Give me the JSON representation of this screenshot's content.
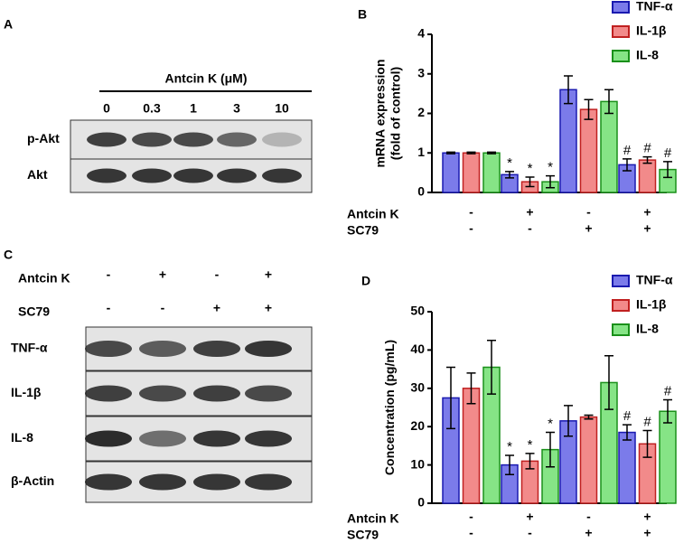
{
  "panels": {
    "a": {
      "label": "A",
      "title": "Antcin K (μM)",
      "doses": [
        "0",
        "0.3",
        "1",
        "3",
        "10"
      ],
      "rows": [
        "p-Akt",
        "Akt"
      ]
    },
    "b": {
      "label": "B"
    },
    "c": {
      "label": "C",
      "treatments": [
        {
          "name": "Antcin K",
          "signs": [
            "-",
            "+",
            "-",
            "+"
          ]
        },
        {
          "name": "SC79",
          "signs": [
            "-",
            "-",
            "+",
            "+"
          ]
        }
      ],
      "rows": [
        "TNF-α",
        "IL-1β",
        "IL-8",
        "β-Actin"
      ]
    },
    "d": {
      "label": "D"
    }
  },
  "chart_data": [
    {
      "type": "bar",
      "y_label": [
        "mRNA expression",
        "(fold of control)"
      ],
      "ylim": [
        0,
        4
      ],
      "yticks": [
        0,
        1,
        2,
        3,
        4
      ],
      "series": [
        {
          "name": "TNF-α",
          "color": "#7b7bea",
          "values": [
            1,
            0.45,
            2.6,
            0.7
          ],
          "errors": [
            0.02,
            0.08,
            0.35,
            0.15
          ],
          "markers": [
            null,
            "*",
            null,
            "#"
          ]
        },
        {
          "name": "IL-1β",
          "color": "#f28a8a",
          "values": [
            1,
            0.27,
            2.1,
            0.82
          ],
          "errors": [
            0.02,
            0.12,
            0.25,
            0.08
          ],
          "markers": [
            null,
            "*",
            null,
            "#"
          ]
        },
        {
          "name": "IL-8",
          "color": "#86e486",
          "values": [
            1,
            0.27,
            2.3,
            0.58
          ],
          "errors": [
            0.02,
            0.15,
            0.3,
            0.2
          ],
          "markers": [
            null,
            "*",
            null,
            "#"
          ]
        }
      ],
      "treatments": [
        {
          "name": "Antcin K",
          "signs": [
            "-",
            "+",
            "-",
            "+"
          ]
        },
        {
          "name": "SC79",
          "signs": [
            "-",
            "-",
            "+",
            "+"
          ]
        }
      ]
    },
    {
      "type": "bar",
      "y_label": [
        "Concentration (pg/mL)"
      ],
      "ylim": [
        0,
        50
      ],
      "yticks": [
        0,
        10,
        20,
        30,
        40,
        50
      ],
      "series": [
        {
          "name": "TNF-α",
          "color": "#7b7bea",
          "values": [
            27.5,
            10,
            21.5,
            18.5
          ],
          "errors": [
            8,
            2.5,
            4,
            2
          ],
          "markers": [
            null,
            "*",
            null,
            "#"
          ]
        },
        {
          "name": "IL-1β",
          "color": "#f28a8a",
          "values": [
            30,
            11,
            22.5,
            15.5
          ],
          "errors": [
            4,
            2,
            0.5,
            3.5
          ],
          "markers": [
            null,
            "*",
            null,
            "#"
          ]
        },
        {
          "name": "IL-8",
          "color": "#86e486",
          "values": [
            35.5,
            14,
            31.5,
            24
          ],
          "errors": [
            7,
            4.5,
            7,
            3
          ],
          "markers": [
            null,
            "*",
            null,
            "#"
          ]
        }
      ],
      "treatments": [
        {
          "name": "Antcin K",
          "signs": [
            "-",
            "+",
            "-",
            "+"
          ]
        },
        {
          "name": "SC79",
          "signs": [
            "-",
            "-",
            "+",
            "+"
          ]
        }
      ]
    }
  ]
}
